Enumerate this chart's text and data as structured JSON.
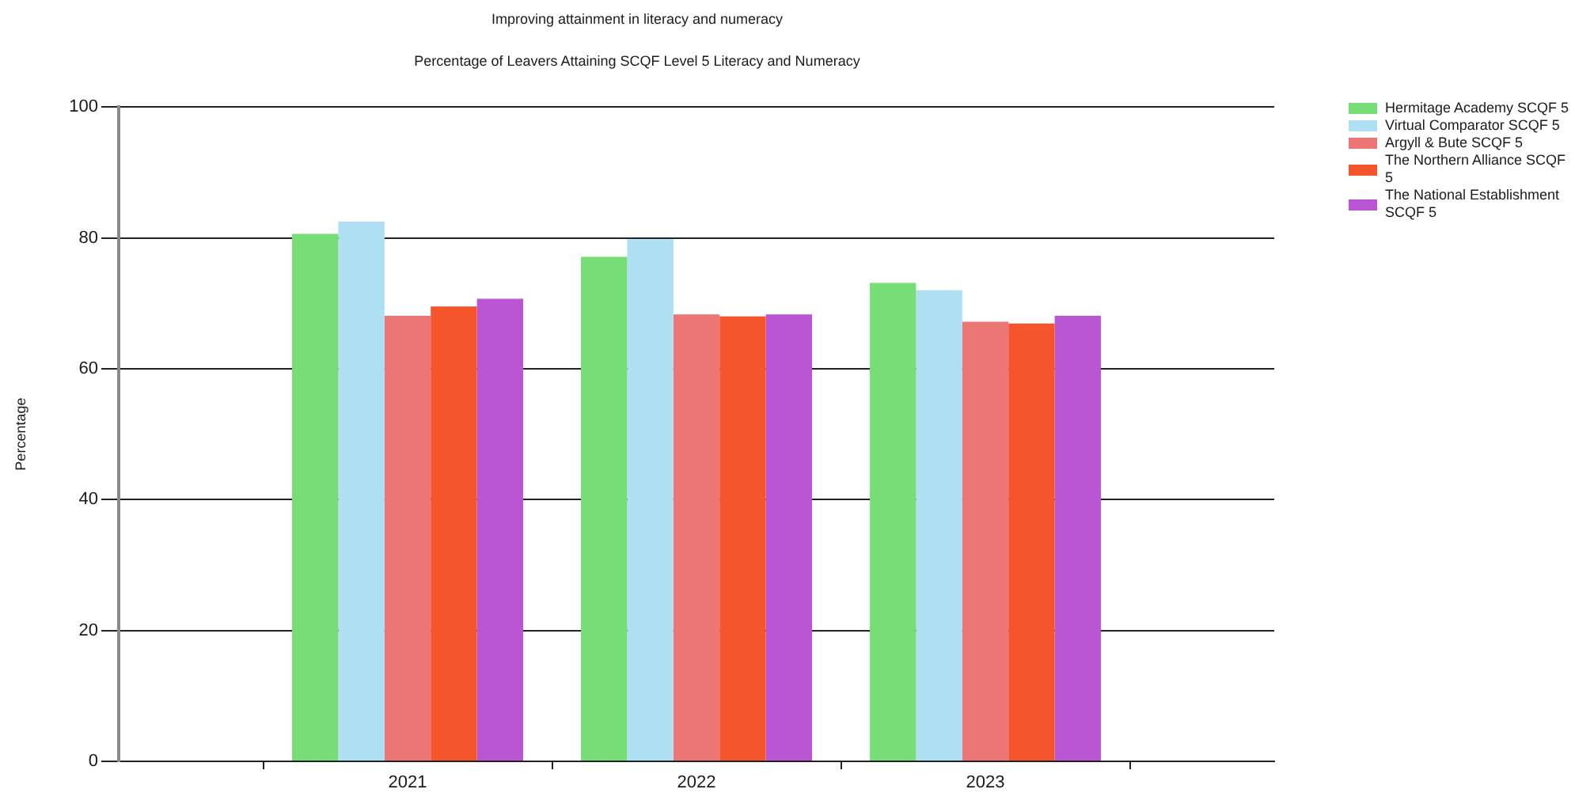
{
  "chart_data": {
    "type": "bar",
    "title": "Improving attainment in literacy and numeracy",
    "subtitle": "Percentage of Leavers Attaining SCQF Level 5 Literacy and Numeracy",
    "ylabel": "Percentage",
    "categories": [
      "2021",
      "2022",
      "2023"
    ],
    "series": [
      {
        "name": "Hermitage Academy SCQF 5",
        "color": "#77dd77",
        "values": [
          80.6,
          77.1,
          73.1
        ]
      },
      {
        "name": "Virtual Comparator SCQF 5",
        "color": "#aedff2",
        "values": [
          82.5,
          79.8,
          72.0
        ]
      },
      {
        "name": "Argyll & Bute SCQF 5",
        "color": "#ec7575",
        "values": [
          68.1,
          68.3,
          67.2
        ]
      },
      {
        "name": "The Northern Alliance SCQF 5",
        "color": "#f4552b",
        "values": [
          69.5,
          68.0,
          66.9
        ]
      },
      {
        "name": "The National Establishment SCQF 5",
        "color": "#ba55d3",
        "values": [
          70.7,
          68.3,
          68.1
        ]
      }
    ],
    "ylim": [
      0,
      100
    ],
    "yticks": [
      0,
      20,
      40,
      60,
      80,
      100
    ],
    "grid": "y",
    "legend": "top right"
  }
}
